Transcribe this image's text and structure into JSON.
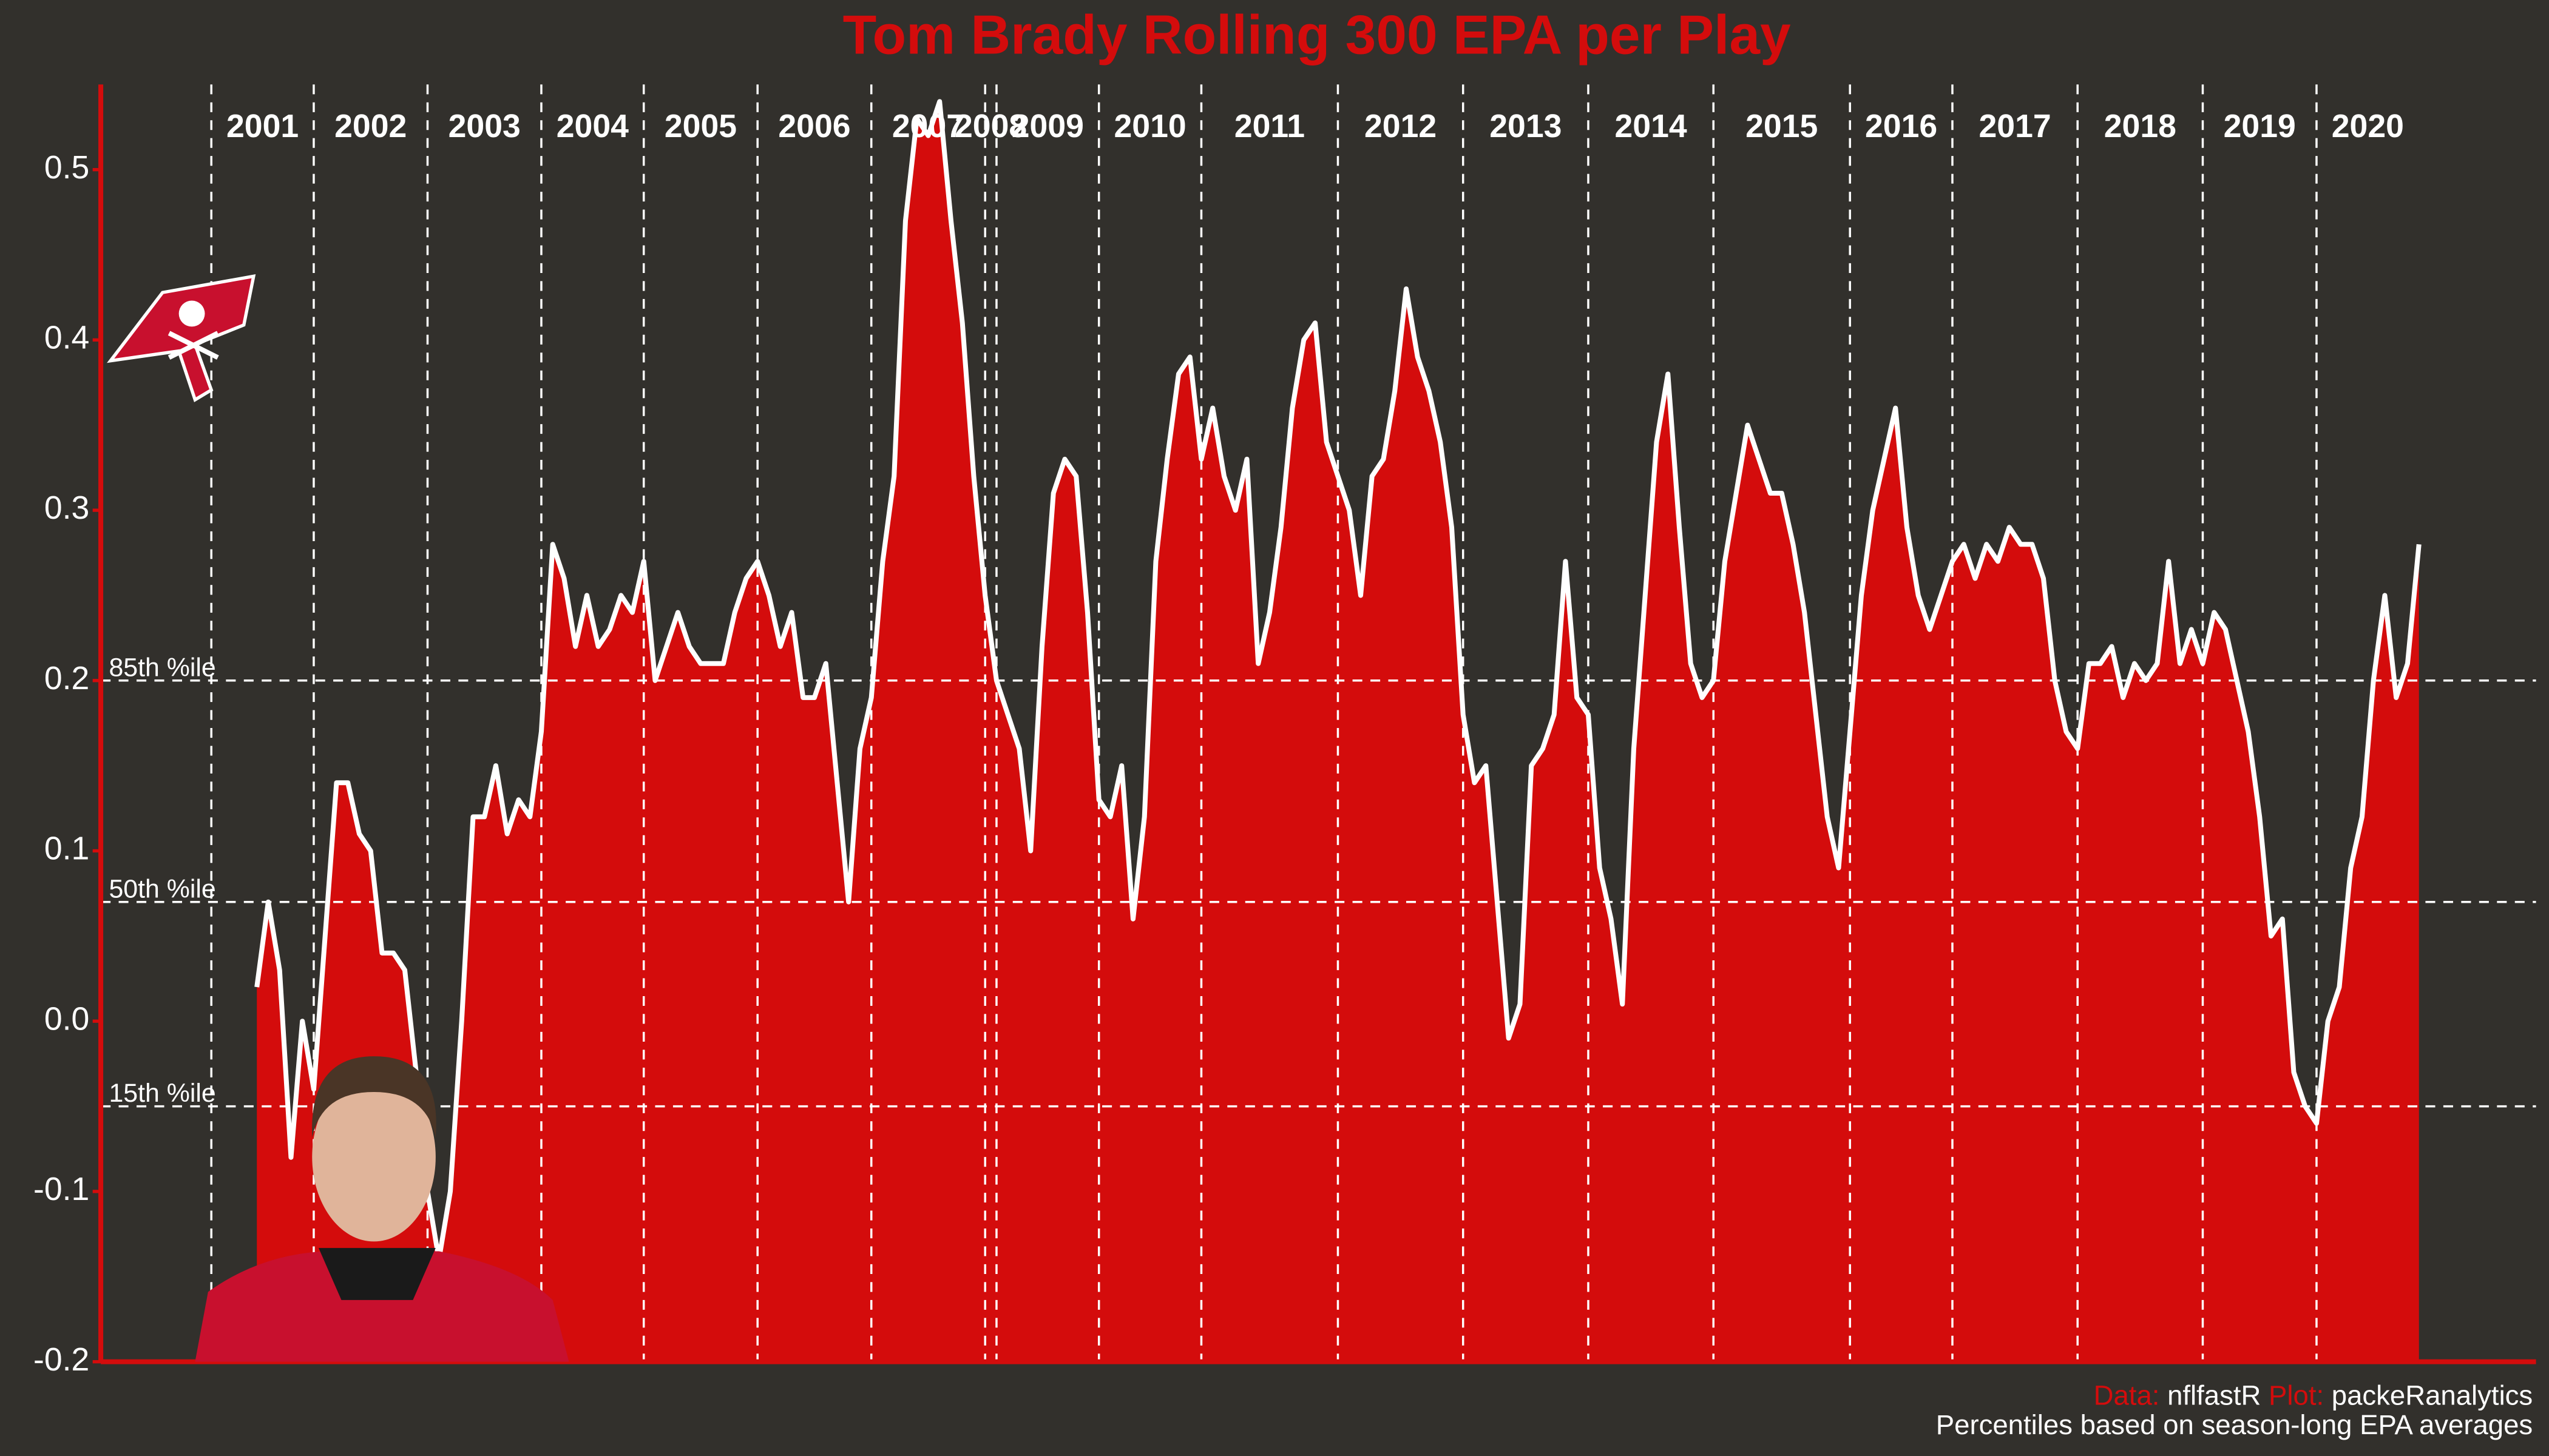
{
  "chart_data": {
    "type": "area",
    "title": "Tom Brady Rolling 300 EPA per Play",
    "caption": {
      "data_label": "Data:",
      "data_source": "nflfastR",
      "plot_label": "Plot:",
      "plot_author": "packeRanalytics",
      "note": "Percentiles based on season-long EPA averages"
    },
    "color": "#d40c0c",
    "line_color": "#ffffff",
    "ylim": [
      -0.2,
      0.55
    ],
    "yticks": [
      -0.2,
      -0.1,
      {
        "value": 0,
        "label": "0.0"
      },
      0.1,
      0.2,
      0.3,
      0.4,
      0.5
    ],
    "reference_lines": [
      {
        "value": 0.2,
        "label": "85th %ile"
      },
      {
        "value": 0.07,
        "label": "50th %ile"
      },
      {
        "value": -0.05,
        "label": "15th %ile"
      }
    ],
    "categories": [
      "2001",
      null,
      null,
      null,
      null,
      null,
      null,
      null,
      null,
      "2002",
      null,
      null,
      null,
      null,
      null,
      null,
      null,
      null,
      null,
      "2003",
      null,
      null,
      null,
      null,
      null,
      null,
      null,
      null,
      null,
      "2004",
      null,
      null,
      null,
      null,
      null,
      null,
      null,
      null,
      "2005",
      null,
      null,
      null,
      null,
      null,
      null,
      null,
      null,
      null,
      "2006",
      null,
      null,
      null,
      null,
      null,
      null,
      null,
      null,
      null,
      "2007",
      null,
      null,
      null,
      null,
      null,
      null,
      null,
      null,
      null,
      "2008",
      "2009",
      null,
      null,
      null,
      null,
      null,
      null,
      null,
      null,
      "2010",
      null,
      null,
      null,
      null,
      null,
      null,
      null,
      null,
      "2011",
      null,
      null,
      null,
      null,
      null,
      null,
      null,
      null,
      null,
      null,
      null,
      "2012",
      null,
      null,
      null,
      null,
      null,
      null,
      null,
      null,
      null,
      null,
      "2013",
      null,
      null,
      null,
      null,
      null,
      null,
      null,
      null,
      null,
      null,
      "2014",
      null,
      null,
      null,
      null,
      null,
      null,
      null,
      null,
      null,
      null,
      "2015",
      null,
      null,
      null,
      null,
      null,
      null,
      null,
      null,
      null,
      null,
      null,
      "2016",
      null,
      null,
      null,
      null,
      null,
      null,
      null,
      null,
      "2017",
      null,
      null,
      null,
      null,
      null,
      null,
      null,
      null,
      null,
      null,
      "2018",
      null,
      null,
      null,
      null,
      null,
      null,
      null,
      null,
      null,
      null,
      "2019",
      null,
      null,
      null,
      null,
      null,
      null,
      null,
      null,
      null,
      "2020",
      null,
      null,
      null,
      null,
      null,
      null,
      null,
      null,
      null
    ],
    "values": [
      null,
      null,
      null,
      null,
      0.02,
      0.07,
      0.03,
      -0.08,
      0.0,
      -0.04,
      0.05,
      0.14,
      0.14,
      0.11,
      0.1,
      0.04,
      0.04,
      0.03,
      -0.03,
      -0.1,
      -0.14,
      -0.1,
      0.0,
      0.12,
      0.12,
      0.15,
      0.11,
      0.13,
      0.12,
      0.17,
      0.28,
      0.26,
      0.22,
      0.25,
      0.22,
      0.23,
      0.25,
      0.24,
      0.27,
      0.2,
      0.22,
      0.24,
      0.22,
      0.21,
      0.21,
      0.21,
      0.24,
      0.26,
      0.27,
      0.25,
      0.22,
      0.24,
      0.19,
      0.19,
      0.21,
      0.14,
      0.07,
      0.16,
      0.19,
      0.27,
      0.32,
      0.47,
      0.53,
      0.52,
      0.54,
      0.47,
      0.41,
      0.32,
      0.25,
      0.2,
      0.18,
      0.16,
      0.1,
      0.22,
      0.31,
      0.33,
      0.32,
      0.24,
      0.13,
      0.12,
      0.15,
      0.06,
      0.12,
      0.27,
      0.33,
      0.38,
      0.39,
      0.33,
      0.36,
      0.32,
      0.3,
      0.33,
      0.21,
      0.24,
      0.29,
      0.36,
      0.4,
      0.41,
      0.34,
      0.32,
      0.3,
      0.25,
      0.32,
      0.33,
      0.37,
      0.43,
      0.39,
      0.37,
      0.34,
      0.29,
      0.18,
      0.14,
      0.15,
      0.07,
      -0.01,
      0.01,
      0.15,
      0.16,
      0.18,
      0.27,
      0.19,
      0.18,
      0.09,
      0.06,
      0.01,
      0.16,
      0.25,
      0.34,
      0.38,
      0.29,
      0.21,
      0.19,
      0.2,
      0.27,
      0.31,
      0.35,
      0.33,
      0.31,
      0.31,
      0.28,
      0.24,
      0.18,
      0.12,
      0.09,
      0.17,
      0.25,
      0.3,
      0.33,
      0.36,
      0.29,
      0.25,
      0.23,
      0.25,
      0.27,
      0.28,
      0.26,
      0.28,
      0.27,
      0.29,
      0.28,
      0.28,
      0.26,
      0.2,
      0.17,
      0.16,
      0.21,
      0.21,
      0.22,
      0.19,
      0.21,
      0.2,
      0.21,
      0.27,
      0.21,
      0.23,
      0.21,
      0.24,
      0.23,
      0.2,
      0.17,
      0.12,
      0.05,
      0.06,
      -0.03,
      -0.05,
      -0.06,
      0.0,
      0.02,
      0.09,
      0.12,
      0.2,
      0.25,
      0.19,
      0.21,
      0.28
    ]
  }
}
